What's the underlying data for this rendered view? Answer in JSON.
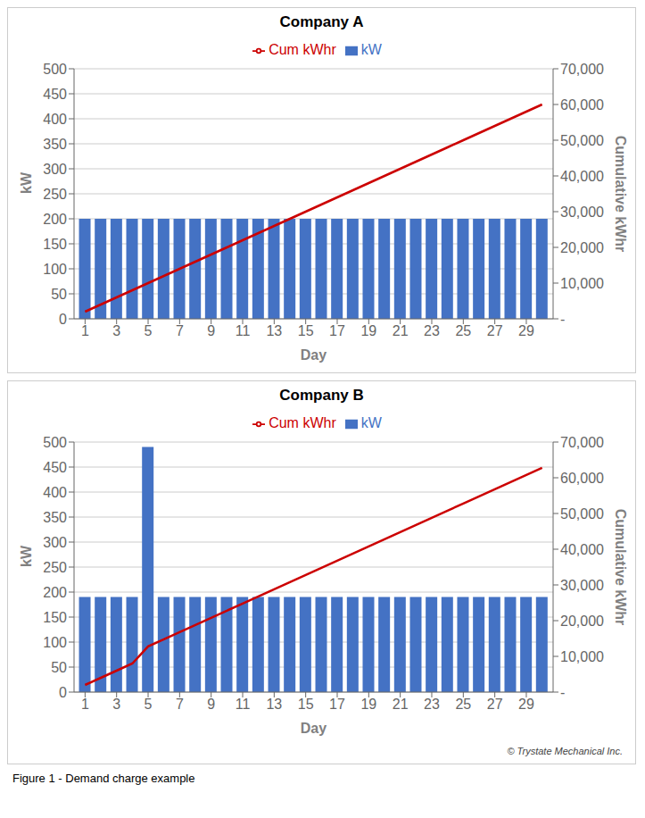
{
  "chart_data": [
    {
      "type": "bar",
      "title": "Company A",
      "x_label": "Day",
      "y_label": "kW",
      "y2_label": "Cumulative kWhr",
      "x": [
        1,
        2,
        3,
        4,
        5,
        6,
        7,
        8,
        9,
        10,
        11,
        12,
        13,
        14,
        15,
        16,
        17,
        18,
        19,
        20,
        21,
        22,
        23,
        24,
        25,
        26,
        27,
        28,
        29,
        30
      ],
      "series": [
        {
          "name": "kW",
          "type": "bar",
          "color": "#4472C4",
          "values": [
            200,
            200,
            200,
            200,
            200,
            200,
            200,
            200,
            200,
            200,
            200,
            200,
            200,
            200,
            200,
            200,
            200,
            200,
            200,
            200,
            200,
            200,
            200,
            200,
            200,
            200,
            200,
            200,
            200,
            200
          ]
        },
        {
          "name": "Cum kWhr",
          "type": "line",
          "axis": "y2",
          "color": "#CC0000",
          "values": [
            2000,
            4000,
            6000,
            8000,
            10000,
            12000,
            14000,
            16000,
            18000,
            20000,
            22000,
            24000,
            26000,
            28000,
            30000,
            32000,
            34000,
            36000,
            38000,
            40000,
            42000,
            44000,
            46000,
            48000,
            50000,
            52000,
            54000,
            56000,
            58000,
            60000
          ]
        }
      ],
      "xlim": [
        0.3,
        30.7
      ],
      "xticks": [
        1,
        3,
        5,
        7,
        9,
        11,
        13,
        15,
        17,
        19,
        21,
        23,
        25,
        27,
        29
      ],
      "ylim": [
        0,
        500
      ],
      "yticks": [
        0,
        50,
        100,
        150,
        200,
        250,
        300,
        350,
        400,
        450,
        500
      ],
      "y2lim": [
        0,
        70000
      ],
      "y2ticks": [
        {
          "value": 0,
          "label": "-"
        },
        {
          "value": 10000,
          "label": "10,000"
        },
        {
          "value": 20000,
          "label": "20,000"
        },
        {
          "value": 30000,
          "label": "30,000"
        },
        {
          "value": 40000,
          "label": "40,000"
        },
        {
          "value": 50000,
          "label": "50,000"
        },
        {
          "value": 60000,
          "label": "60,000"
        },
        {
          "value": 70000,
          "label": "70,000"
        }
      ],
      "grid": true,
      "legend": "top"
    },
    {
      "type": "bar",
      "title": "Company B",
      "x_label": "Day",
      "y_label": "kW",
      "y2_label": "Cumulative kWhr",
      "x": [
        1,
        2,
        3,
        4,
        5,
        6,
        7,
        8,
        9,
        10,
        11,
        12,
        13,
        14,
        15,
        16,
        17,
        18,
        19,
        20,
        21,
        22,
        23,
        24,
        25,
        26,
        27,
        28,
        29,
        30
      ],
      "series": [
        {
          "name": "kW",
          "type": "bar",
          "color": "#4472C4",
          "values": [
            190,
            190,
            190,
            190,
            490,
            190,
            190,
            190,
            190,
            190,
            190,
            190,
            190,
            190,
            190,
            190,
            190,
            190,
            190,
            190,
            190,
            190,
            190,
            190,
            190,
            190,
            190,
            190,
            190,
            190
          ]
        },
        {
          "name": "Cum kWhr",
          "type": "line",
          "axis": "y2",
          "color": "#CC0000",
          "values": [
            2000,
            4000,
            6000,
            8000,
            12800,
            14800,
            16800,
            18800,
            20800,
            22800,
            24800,
            26800,
            28800,
            30800,
            32800,
            34800,
            36800,
            38800,
            40800,
            42800,
            44800,
            46800,
            48800,
            50800,
            52800,
            54800,
            56800,
            58800,
            60800,
            62800
          ]
        }
      ],
      "xlim": [
        0.3,
        30.7
      ],
      "xticks": [
        1,
        3,
        5,
        7,
        9,
        11,
        13,
        15,
        17,
        19,
        21,
        23,
        25,
        27,
        29
      ],
      "ylim": [
        0,
        500
      ],
      "yticks": [
        0,
        50,
        100,
        150,
        200,
        250,
        300,
        350,
        400,
        450,
        500
      ],
      "y2lim": [
        0,
        70000
      ],
      "y2ticks": [
        {
          "value": 0,
          "label": "-"
        },
        {
          "value": 10000,
          "label": "10,000"
        },
        {
          "value": 20000,
          "label": "20,000"
        },
        {
          "value": 30000,
          "label": "30,000"
        },
        {
          "value": 40000,
          "label": "40,000"
        },
        {
          "value": 50000,
          "label": "50,000"
        },
        {
          "value": 60000,
          "label": "60,000"
        },
        {
          "value": 70000,
          "label": "70,000"
        }
      ],
      "grid": true,
      "legend": "top",
      "annotations": [
        "© Trystate Mechanical Inc.",
        "Figure 1 - Demand charge example"
      ]
    }
  ]
}
